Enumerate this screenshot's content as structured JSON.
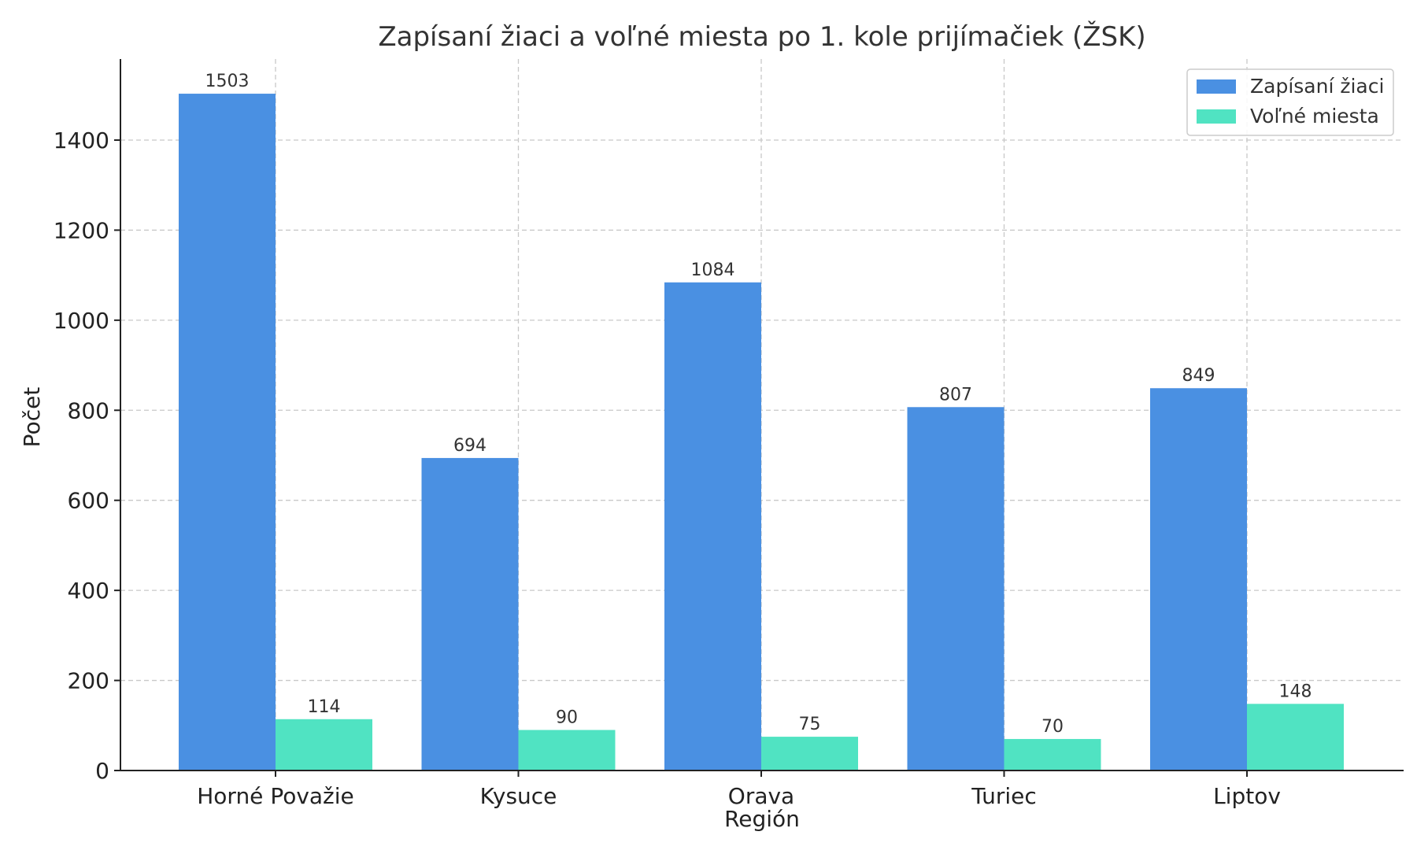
{
  "chart_data": {
    "type": "bar",
    "title": "Zapísaní žiaci a voľné miesta po 1. kole prijímačiek (ŽSK)",
    "xlabel": "Región",
    "ylabel": "Počet",
    "categories": [
      "Horné Považie",
      "Kysuce",
      "Orava",
      "Turiec",
      "Liptov"
    ],
    "series": [
      {
        "name": "Zapísaní žiaci",
        "values": [
          1503,
          694,
          1084,
          807,
          849
        ],
        "color": "#4a90e2"
      },
      {
        "name": "Voľné miesta",
        "values": [
          114,
          90,
          75,
          70,
          148
        ],
        "color": "#50e3c2"
      }
    ],
    "ylim": [
      0,
      1580
    ],
    "yticks": [
      0,
      200,
      400,
      600,
      800,
      1000,
      1200,
      1400
    ],
    "grid": true,
    "legend_position": "top-right"
  }
}
